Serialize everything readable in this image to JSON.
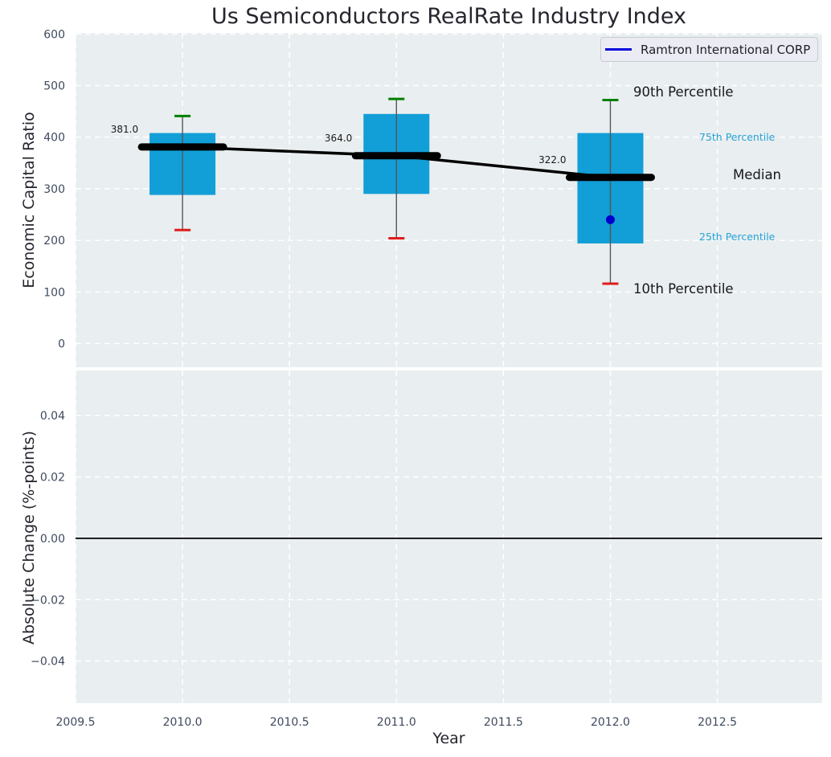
{
  "legend": {
    "label": "Ramtron International CORP",
    "line_color": "#0505dc"
  },
  "annotations": {
    "p90": {
      "text": "90th Percentile",
      "color": "#17171c"
    },
    "p75": {
      "text": "75th Percentile",
      "color": "#27a2d6"
    },
    "median": {
      "text": "Median",
      "color": "#17171c"
    },
    "p25": {
      "text": "25th Percentile",
      "color": "#27a2d6"
    },
    "p10": {
      "text": "10th Percentile",
      "color": "#17171c"
    }
  },
  "colors": {
    "figure_bg": "#ffffff",
    "axes_bg": "#e9eef0",
    "grid": "#ffffff",
    "box_fill": "#129ed7",
    "whisker": "#555555",
    "cap_high": "#008000",
    "cap_low": "#e01c1c",
    "median_line": "#000000",
    "trend_line": "#000000",
    "company_point": "#0000cc",
    "tick_label": "#3e4a5e",
    "value_label": "#1a1a1a",
    "zero_line": "#000000"
  },
  "chart_data": [
    {
      "type": "boxplot",
      "title": "Us Semiconductors RealRate Industry Index",
      "ylabel": "Economic Capital Ratio",
      "xlim": [
        2009.5,
        2012.99
      ],
      "ylim": [
        -46,
        602
      ],
      "grid": true,
      "legend_position": "upper right",
      "yticks": {
        "values": [
          600,
          500,
          400,
          300,
          200,
          100,
          0
        ],
        "labels": [
          "600",
          "500",
          "400",
          "300",
          "200",
          "100",
          "0"
        ]
      },
      "boxes": [
        {
          "x": 2010,
          "median": 381,
          "median_label": "381.0",
          "q25": 288,
          "q75": 408,
          "whisker_low": 220,
          "whisker_high": 441
        },
        {
          "x": 2011,
          "median": 364,
          "median_label": "364.0",
          "q25": 290,
          "q75": 445,
          "whisker_low": 204,
          "whisker_high": 474
        },
        {
          "x": 2012,
          "median": 322,
          "median_label": "322.0",
          "q25": 194,
          "q75": 408,
          "whisker_low": 116,
          "whisker_high": 472
        }
      ],
      "median_trend": {
        "x": [
          2010,
          2011,
          2012
        ],
        "y": [
          381,
          364,
          322
        ]
      },
      "company_point": {
        "name": "Ramtron International CORP",
        "x": 2012,
        "y": 240
      }
    },
    {
      "type": "line",
      "ylabel": "Absolute Change (%-points)",
      "xlabel": "Year",
      "xlim": [
        2009.5,
        2012.99
      ],
      "ylim": [
        -0.0537,
        0.0547
      ],
      "grid": true,
      "zero_line": true,
      "series": [],
      "xticks": {
        "values": [
          2009.5,
          2010.0,
          2010.5,
          2011.0,
          2011.5,
          2012.0,
          2012.5
        ],
        "labels": [
          "2009.5",
          "2010.0",
          "2010.5",
          "2011.0",
          "2011.5",
          "2012.0",
          "2012.5"
        ]
      },
      "yticks": {
        "values": [
          0.04,
          0.02,
          0.0,
          -0.02,
          -0.04
        ],
        "labels": [
          "0.04",
          "0.02",
          "0.00",
          "−0.02",
          "−0.04"
        ]
      }
    }
  ]
}
